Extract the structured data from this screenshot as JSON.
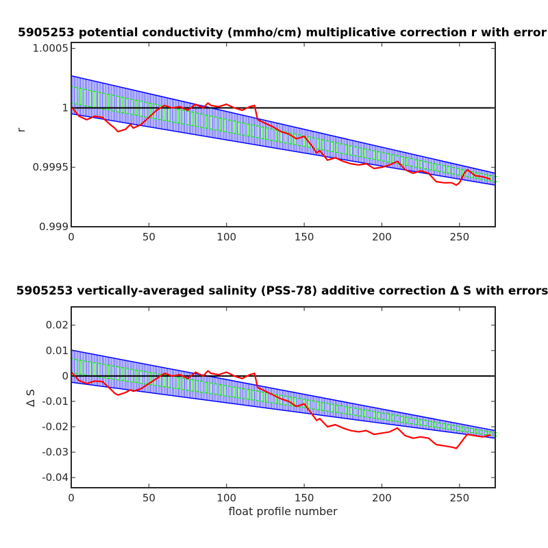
{
  "chart_data": [
    {
      "type": "line",
      "title": "5905253 potential conductivity (mmho/cm) multiplicative correction r with error",
      "xlabel": "",
      "ylabel": "r",
      "xlim": [
        0,
        273
      ],
      "ylim": [
        0.999,
        1.00055
      ],
      "x_ticks": [
        "0",
        "50",
        "100",
        "150",
        "200",
        "250"
      ],
      "y_ticks": [
        "0.999",
        "0.9995",
        "1",
        "1.0005"
      ],
      "grid": false,
      "reference_line": 1.0,
      "fit": {
        "x": [
          0,
          273
        ],
        "y": [
          1.00011,
          0.9994
        ]
      },
      "error_band": {
        "x": [
          0,
          273
        ],
        "upper": [
          1.00027,
          0.99945
        ],
        "lower": [
          0.99995,
          0.99935
        ]
      },
      "series": [
        {
          "color": "#ff0000",
          "x": [
            0,
            5,
            10,
            15,
            20,
            25,
            28,
            30,
            35,
            38,
            40,
            45,
            50,
            55,
            60,
            65,
            70,
            75,
            80,
            85,
            88,
            90,
            95,
            100,
            105,
            110,
            115,
            118,
            120,
            125,
            130,
            135,
            140,
            145,
            150,
            155,
            158,
            160,
            165,
            170,
            175,
            180,
            185,
            190,
            195,
            200,
            205,
            210,
            215,
            220,
            225,
            230,
            235,
            240,
            245,
            248,
            250,
            253,
            255,
            260,
            265,
            270
          ],
          "y": [
            1.00001,
            0.99993,
            0.9999,
            0.99993,
            0.99992,
            0.99986,
            0.99983,
            0.9998,
            0.99982,
            0.99986,
            0.99983,
            0.99986,
            0.99992,
            0.99998,
            1.00002,
            1.0,
            1.00001,
            0.99998,
            1.00003,
            1.0,
            1.00004,
            1.00002,
            1.00001,
            1.00003,
            1.0,
            0.99998,
            1.00001,
            1.00002,
            0.9999,
            0.99987,
            0.99984,
            0.9998,
            0.99978,
            0.99974,
            0.99976,
            0.99968,
            0.99962,
            0.99964,
            0.99956,
            0.99958,
            0.99955,
            0.99953,
            0.99952,
            0.99953,
            0.99949,
            0.9995,
            0.99952,
            0.99955,
            0.99948,
            0.99945,
            0.99947,
            0.99945,
            0.99938,
            0.99937,
            0.99937,
            0.99935,
            0.99937,
            0.99945,
            0.99948,
            0.99943,
            0.99942,
            0.9994
          ]
        }
      ]
    },
    {
      "type": "line",
      "title": "5905253 vertically-averaged salinity (PSS-78) additive correction Δ S with errors",
      "xlabel": "float profile number",
      "ylabel": "Δ S",
      "xlim": [
        0,
        273
      ],
      "ylim": [
        -0.044,
        0.0272
      ],
      "x_ticks": [
        "0",
        "50",
        "100",
        "150",
        "200",
        "250"
      ],
      "y_ticks": [
        "-0.04",
        "-0.03",
        "-0.02",
        "-0.01",
        "0",
        "0.01",
        "0.02"
      ],
      "grid": false,
      "reference_line": 0,
      "fit": {
        "x": [
          0,
          273
        ],
        "y": [
          0.004,
          -0.023
        ]
      },
      "error_band": {
        "x": [
          0,
          273
        ],
        "upper": [
          0.0102,
          -0.0215
        ],
        "lower": [
          -0.0025,
          -0.0245
        ]
      },
      "series": [
        {
          "color": "#ff0000",
          "x": [
            0,
            5,
            10,
            15,
            20,
            25,
            28,
            30,
            35,
            38,
            40,
            45,
            50,
            55,
            60,
            65,
            70,
            75,
            80,
            85,
            88,
            90,
            95,
            100,
            105,
            110,
            115,
            118,
            120,
            125,
            130,
            135,
            140,
            145,
            150,
            155,
            158,
            160,
            165,
            170,
            175,
            180,
            185,
            190,
            195,
            200,
            205,
            210,
            215,
            220,
            225,
            230,
            235,
            240,
            245,
            248,
            250,
            253,
            255,
            260,
            265,
            270
          ],
          "y": [
            0.0015,
            -0.0018,
            -0.003,
            -0.002,
            -0.0022,
            -0.005,
            -0.0068,
            -0.0075,
            -0.0065,
            -0.0055,
            -0.006,
            -0.005,
            -0.003,
            -0.001,
            0.001,
            0.0,
            0.0005,
            -0.001,
            0.0015,
            0.0,
            0.002,
            0.001,
            0.0005,
            0.0015,
            0.0,
            -0.001,
            0.0005,
            0.001,
            -0.0045,
            -0.006,
            -0.0075,
            -0.009,
            -0.01,
            -0.012,
            -0.011,
            -0.015,
            -0.0175,
            -0.0168,
            -0.02,
            -0.0192,
            -0.0205,
            -0.0215,
            -0.022,
            -0.0215,
            -0.023,
            -0.0225,
            -0.022,
            -0.0205,
            -0.0235,
            -0.0245,
            -0.024,
            -0.0245,
            -0.027,
            -0.0275,
            -0.028,
            -0.0285,
            -0.027,
            -0.0245,
            -0.023,
            -0.0235,
            -0.024,
            -0.0232
          ]
        }
      ]
    }
  ]
}
